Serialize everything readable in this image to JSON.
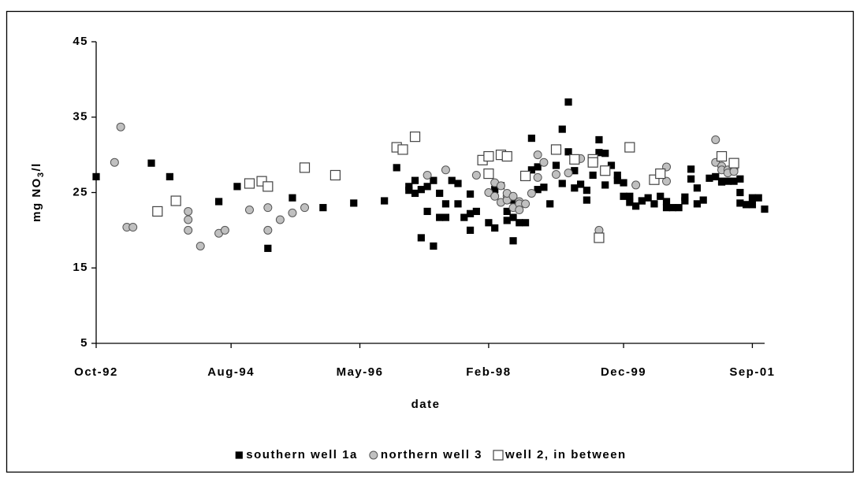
{
  "chart_data": {
    "type": "scatter",
    "xlabel": "date",
    "ylabel": [
      "mg NO",
      "3",
      "/l"
    ],
    "xlim": [
      "1992-10",
      "2001-11"
    ],
    "xticks": [
      {
        "value": "1992-10",
        "label": "Oct-92"
      },
      {
        "value": "1994-08",
        "label": "Aug-94"
      },
      {
        "value": "1996-05",
        "label": "May-96"
      },
      {
        "value": "1998-02",
        "label": "Feb-98"
      },
      {
        "value": "1999-12",
        "label": "Dec-99"
      },
      {
        "value": "2001-09",
        "label": "Sep-01"
      }
    ],
    "ylim": [
      5,
      45
    ],
    "yticks": [
      5,
      15,
      25,
      35,
      45
    ],
    "grid": false,
    "legend": "bottom",
    "series": [
      {
        "name": "southern well 1a",
        "color": "#000000",
        "marker": "square",
        "x": [
          "1992-10",
          "1993-07",
          "1993-10",
          "1994-06",
          "1994-09",
          "1995-02",
          "1995-06",
          "1995-11",
          "1996-04",
          "1996-09",
          "1996-11",
          "1997-01",
          "1997-01",
          "1997-02",
          "1997-02",
          "1997-03",
          "1997-03",
          "1997-04",
          "1997-04",
          "1997-05",
          "1997-05",
          "1997-06",
          "1997-06",
          "1997-07",
          "1997-07",
          "1997-08",
          "1997-09",
          "1997-09",
          "1997-10",
          "1997-11",
          "1997-11",
          "1997-11",
          "1997-12",
          "1998-02",
          "1998-03",
          "1998-03",
          "1998-04",
          "1998-05",
          "1998-05",
          "1998-06",
          "1998-06",
          "1998-06",
          "1998-07",
          "1998-07",
          "1998-08",
          "1998-09",
          "1998-09",
          "1998-10",
          "1998-10",
          "1998-11",
          "1998-12",
          "1999-01",
          "1999-02",
          "1999-02",
          "1999-03",
          "1999-03",
          "1999-04",
          "1999-04",
          "1999-05",
          "1999-06",
          "1999-06",
          "1999-07",
          "1999-08",
          "1999-08",
          "1999-09",
          "1999-09",
          "1999-10",
          "1999-11",
          "1999-11",
          "1999-12",
          "1999-12",
          "2000-01",
          "2000-01",
          "2000-02",
          "2000-03",
          "2000-03",
          "2000-04",
          "2000-05",
          "2000-06",
          "2000-07",
          "2000-07",
          "2000-08",
          "2000-09",
          "2000-10",
          "2000-10",
          "2000-11",
          "2000-11",
          "2000-12",
          "2000-12",
          "2001-01",
          "2001-02",
          "2001-03",
          "2001-04",
          "2001-04",
          "2001-05",
          "2001-06",
          "2001-07",
          "2001-07",
          "2001-07",
          "2001-08",
          "2001-09",
          "2001-09",
          "2001-10",
          "2001-11"
        ],
        "values": [
          27.1,
          28.9,
          27.1,
          23.8,
          25.8,
          17.6,
          24.3,
          23.0,
          23.6,
          23.9,
          28.3,
          25.8,
          25.3,
          24.9,
          26.6,
          19.0,
          25.4,
          22.5,
          25.8,
          26.6,
          17.9,
          21.7,
          24.9,
          23.5,
          21.7,
          26.6,
          26.2,
          23.5,
          21.7,
          22.2,
          24.8,
          20.0,
          22.5,
          21.0,
          20.3,
          25.4,
          25.9,
          21.3,
          22.5,
          21.7,
          24.0,
          18.6,
          23.4,
          21.0,
          21.0,
          28.0,
          32.2,
          28.4,
          25.4,
          25.7,
          23.5,
          28.6,
          26.2,
          33.4,
          30.4,
          37.0,
          27.9,
          25.6,
          26.1,
          24.0,
          25.3,
          27.3,
          32.0,
          30.3,
          30.2,
          26.0,
          28.6,
          26.6,
          27.3,
          26.3,
          24.5,
          23.7,
          24.5,
          23.2,
          23.9,
          23.9,
          24.3,
          23.5,
          24.5,
          23.8,
          23.0,
          23.0,
          23.0,
          24.4,
          23.9,
          26.8,
          28.1,
          25.6,
          23.5,
          24.0,
          26.9,
          27.1,
          26.4,
          26.5,
          26.5,
          26.5,
          23.6,
          25.0,
          26.8,
          23.4,
          24.3,
          23.4,
          24.3,
          22.8
        ]
      },
      {
        "name": "northern well 3",
        "color": "#c0c0c0",
        "marker": "circle",
        "x": [
          "1993-01",
          "1993-02",
          "1993-03",
          "1993-04",
          "1994-01",
          "1994-01",
          "1994-01",
          "1994-03",
          "1994-06",
          "1994-07",
          "1994-11",
          "1995-02",
          "1995-02",
          "1995-04",
          "1995-06",
          "1995-08",
          "1997-04",
          "1997-07",
          "1997-12",
          "1998-02",
          "1998-03",
          "1998-03",
          "1998-04",
          "1998-04",
          "1998-05",
          "1998-05",
          "1998-05",
          "1998-06",
          "1998-06",
          "1998-07",
          "1998-07",
          "1998-07",
          "1998-08",
          "1998-09",
          "1998-10",
          "1998-10",
          "1998-11",
          "1999-01",
          "1999-03",
          "1999-05",
          "1999-08",
          "2000-02",
          "2000-07",
          "2000-07",
          "2001-03",
          "2001-03",
          "2001-04",
          "2001-04",
          "2001-05",
          "2001-05",
          "2001-06",
          "2001-06"
        ],
        "values": [
          29.0,
          33.7,
          20.4,
          20.4,
          20.0,
          22.5,
          21.4,
          17.9,
          19.6,
          20.0,
          22.7,
          23.0,
          20.0,
          21.4,
          22.3,
          23.0,
          27.3,
          28.0,
          27.3,
          25.0,
          26.3,
          24.5,
          23.7,
          25.9,
          24.5,
          24.0,
          24.9,
          24.5,
          23.0,
          23.8,
          23.5,
          22.7,
          23.5,
          24.9,
          27.0,
          30.0,
          29.0,
          27.4,
          27.6,
          29.5,
          20.0,
          26.0,
          28.4,
          26.5,
          29.0,
          32.0,
          28.5,
          28.0,
          28.0,
          27.6,
          28.0,
          27.8
        ]
      },
      {
        "name": "well 2, in between",
        "color": "#ffffff",
        "marker": "open-square",
        "x": [
          "1993-08",
          "1993-11",
          "1994-11",
          "1995-01",
          "1995-02",
          "1995-08",
          "1996-01",
          "1996-11",
          "1996-12",
          "1997-02",
          "1998-01",
          "1998-02",
          "1998-02",
          "1998-04",
          "1998-05",
          "1998-08",
          "1999-01",
          "1999-04",
          "1999-07",
          "1999-07",
          "1999-08",
          "1999-09",
          "2000-01",
          "2000-05",
          "2000-06",
          "2001-04",
          "2001-06"
        ],
        "values": [
          22.5,
          23.9,
          26.2,
          26.5,
          25.8,
          28.3,
          27.3,
          31.0,
          30.7,
          32.4,
          29.3,
          27.5,
          29.8,
          30.0,
          29.8,
          27.2,
          30.7,
          29.4,
          29.4,
          29.0,
          19.0,
          27.9,
          31.0,
          26.7,
          27.5,
          29.8,
          28.9
        ]
      }
    ]
  }
}
